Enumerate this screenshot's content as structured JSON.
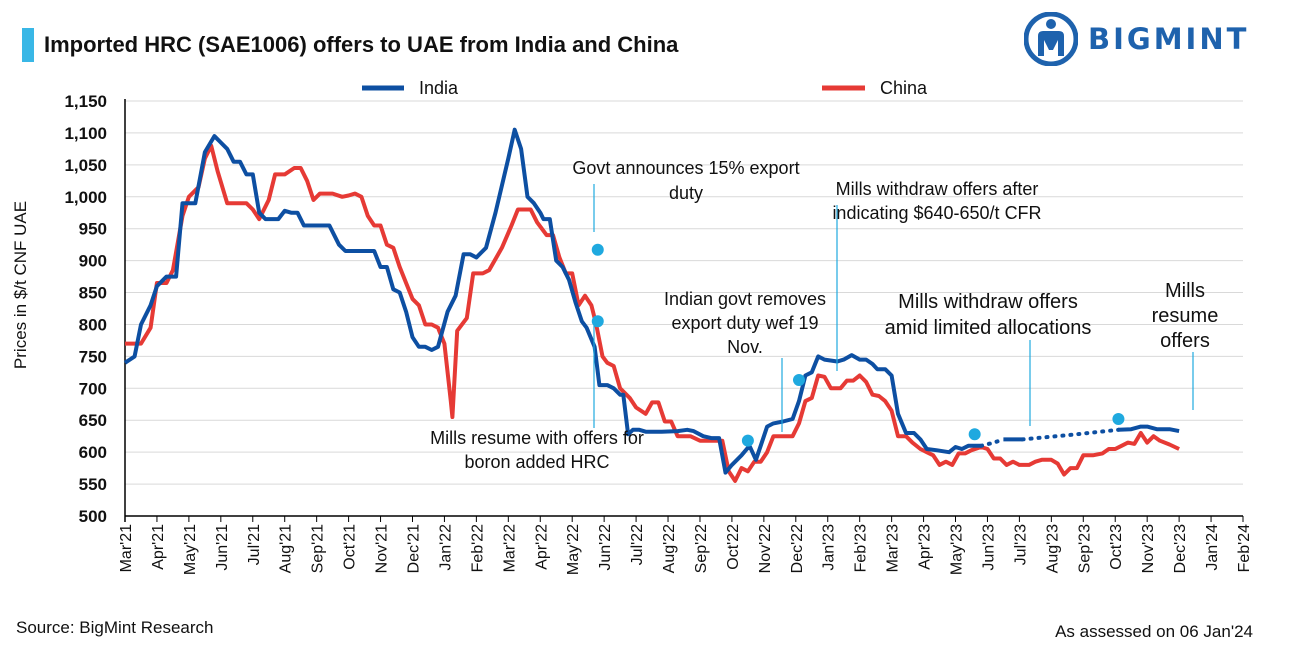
{
  "header": {
    "title": "Imported HRC (SAE1006) offers to UAE from India and China",
    "logo_text": "BIGMINT"
  },
  "footer": {
    "source": "Source: BigMint Research",
    "assessed": "As assessed on 06 Jan'24"
  },
  "colors": {
    "india": "#0d4fa2",
    "china": "#e63a35",
    "accent": "#39b7e6",
    "marker": "#1fa9df"
  },
  "chart_data": {
    "type": "line",
    "title": "Imported HRC (SAE1006) offers to UAE from India and China",
    "ylabel": "Prices in $/t CNF UAE",
    "xlabel": "",
    "ylim": [
      500,
      1150
    ],
    "yticks": [
      500,
      550,
      600,
      650,
      700,
      750,
      800,
      850,
      900,
      950,
      1000,
      1050,
      1100,
      1150
    ],
    "ytick_labels": [
      "500",
      "550",
      "600",
      "650",
      "700",
      "750",
      "800",
      "850",
      "900",
      "950",
      "1,000",
      "1,050",
      "1,100",
      "1,150"
    ],
    "x_tick_labels": [
      "Mar'21",
      "Apr'21",
      "May'21",
      "Jun'21",
      "Jul'21",
      "Aug'21",
      "Sep'21",
      "Oct'21",
      "Nov'21",
      "Dec'21",
      "Jan'22",
      "Feb'22",
      "Mar'22",
      "Apr'22",
      "May'22",
      "Jun'22",
      "Jul'22",
      "Aug'22",
      "Sep'22",
      "Oct'22",
      "Nov'22",
      "Dec'22",
      "Jan'23",
      "Feb'23",
      "Mar'23",
      "Apr'23",
      "May'23",
      "Jun'23",
      "Jul'23",
      "Aug'23",
      "Sep'23",
      "Oct'23",
      "Nov'23",
      "Dec'23",
      "Jan'24",
      "Feb'24"
    ],
    "legend_position": "top",
    "grid": "horizontal",
    "series": [
      {
        "name": "India",
        "color": "#0d4fa2",
        "points": [
          [
            0,
            740
          ],
          [
            0.3,
            750
          ],
          [
            0.5,
            800
          ],
          [
            0.8,
            830
          ],
          [
            1.0,
            860
          ],
          [
            1.3,
            875
          ],
          [
            1.6,
            875
          ],
          [
            1.8,
            990
          ],
          [
            2.2,
            990
          ],
          [
            2.5,
            1070
          ],
          [
            2.8,
            1095
          ],
          [
            3.0,
            1085
          ],
          [
            3.2,
            1075
          ],
          [
            3.4,
            1055
          ],
          [
            3.6,
            1055
          ],
          [
            3.8,
            1035
          ],
          [
            4.0,
            1035
          ],
          [
            4.2,
            975
          ],
          [
            4.4,
            965
          ],
          [
            4.8,
            965
          ],
          [
            5.0,
            978
          ],
          [
            5.2,
            975
          ],
          [
            5.4,
            975
          ],
          [
            5.6,
            955
          ],
          [
            6.0,
            955
          ],
          [
            6.4,
            955
          ],
          [
            6.7,
            925
          ],
          [
            6.9,
            915
          ],
          [
            7.4,
            915
          ],
          [
            7.8,
            915
          ],
          [
            8.0,
            890
          ],
          [
            8.2,
            890
          ],
          [
            8.4,
            855
          ],
          [
            8.6,
            850
          ],
          [
            8.8,
            820
          ],
          [
            9.0,
            780
          ],
          [
            9.2,
            765
          ],
          [
            9.4,
            765
          ],
          [
            9.6,
            760
          ],
          [
            9.8,
            765
          ],
          [
            10.1,
            820
          ],
          [
            10.35,
            845
          ],
          [
            10.6,
            910
          ],
          [
            10.8,
            910
          ],
          [
            11.0,
            905
          ],
          [
            11.3,
            920
          ],
          [
            11.6,
            975
          ],
          [
            12.0,
            1060
          ],
          [
            12.2,
            1105
          ],
          [
            12.4,
            1075
          ],
          [
            12.6,
            1000
          ],
          [
            12.8,
            990
          ],
          [
            13.0,
            975
          ],
          [
            13.1,
            965
          ],
          [
            13.3,
            965
          ],
          [
            13.5,
            900
          ],
          [
            13.7,
            890
          ],
          [
            13.9,
            870
          ],
          [
            14.1,
            835
          ],
          [
            14.3,
            805
          ],
          [
            14.45,
            795
          ],
          [
            14.7,
            765
          ],
          [
            14.85,
            705
          ],
          [
            15.1,
            705
          ],
          [
            15.3,
            700
          ],
          [
            15.5,
            690
          ],
          [
            15.6,
            690
          ],
          [
            15.75,
            628
          ],
          [
            15.9,
            635
          ],
          [
            16.1,
            635
          ],
          [
            16.3,
            632
          ],
          [
            16.8,
            632
          ],
          [
            17.3,
            633
          ],
          [
            17.6,
            635
          ],
          [
            17.8,
            633
          ],
          [
            18.1,
            625
          ],
          [
            18.35,
            622
          ],
          [
            18.6,
            622
          ],
          [
            18.8,
            568
          ],
          [
            19.0,
            580
          ],
          [
            19.3,
            595
          ],
          [
            19.55,
            610
          ],
          [
            19.75,
            588
          ],
          [
            19.9,
            610
          ],
          [
            20.1,
            640
          ],
          [
            20.3,
            645
          ],
          [
            20.6,
            648
          ],
          [
            20.9,
            652
          ],
          [
            21.1,
            680
          ],
          [
            21.3,
            720
          ],
          [
            21.5,
            725
          ],
          [
            21.7,
            750
          ],
          [
            21.9,
            745
          ],
          [
            22.3,
            742
          ],
          [
            22.5,
            745
          ],
          [
            22.75,
            752
          ],
          [
            23.0,
            745
          ],
          [
            23.2,
            745
          ],
          [
            23.4,
            738
          ],
          [
            23.55,
            730
          ],
          [
            23.8,
            730
          ],
          [
            24.0,
            720
          ],
          [
            24.2,
            660
          ],
          [
            24.45,
            630
          ],
          [
            24.7,
            630
          ],
          [
            24.9,
            620
          ],
          [
            25.1,
            605
          ],
          [
            25.4,
            603
          ],
          [
            25.8,
            600
          ],
          [
            26.0,
            608
          ],
          [
            26.2,
            605
          ],
          [
            26.4,
            610
          ],
          [
            26.8,
            610
          ]
        ],
        "dotted_points": [
          [
            26.8,
            610
          ],
          [
            27.2,
            615
          ],
          [
            27.5,
            620
          ]
        ],
        "solid_segment_2": [
          [
            27.5,
            620
          ],
          [
            28.1,
            620
          ]
        ],
        "dotted_points_2": [
          [
            28.1,
            620
          ],
          [
            29.6,
            627
          ],
          [
            31.1,
            635
          ]
        ],
        "solid_segment_3": [
          [
            31.1,
            635
          ],
          [
            31.5,
            636
          ],
          [
            31.8,
            640
          ],
          [
            32.0,
            640
          ],
          [
            32.3,
            636
          ],
          [
            32.7,
            636
          ],
          [
            33.0,
            633
          ]
        ]
      },
      {
        "name": "China",
        "color": "#e63a35",
        "points": [
          [
            0,
            770
          ],
          [
            0.5,
            770
          ],
          [
            0.8,
            795
          ],
          [
            1.0,
            865
          ],
          [
            1.3,
            865
          ],
          [
            1.5,
            885
          ],
          [
            1.8,
            970
          ],
          [
            2.0,
            1000
          ],
          [
            2.3,
            1015
          ],
          [
            2.5,
            1060
          ],
          [
            2.7,
            1080
          ],
          [
            2.9,
            1040
          ],
          [
            3.2,
            990
          ],
          [
            3.5,
            990
          ],
          [
            3.8,
            990
          ],
          [
            4.0,
            980
          ],
          [
            4.2,
            965
          ],
          [
            4.5,
            995
          ],
          [
            4.7,
            1035
          ],
          [
            5.0,
            1035
          ],
          [
            5.3,
            1045
          ],
          [
            5.5,
            1045
          ],
          [
            5.7,
            1025
          ],
          [
            5.9,
            995
          ],
          [
            6.1,
            1005
          ],
          [
            6.5,
            1005
          ],
          [
            6.8,
            1000
          ],
          [
            7.0,
            1002
          ],
          [
            7.2,
            1005
          ],
          [
            7.4,
            1000
          ],
          [
            7.6,
            970
          ],
          [
            7.8,
            955
          ],
          [
            8.0,
            955
          ],
          [
            8.2,
            925
          ],
          [
            8.4,
            920
          ],
          [
            8.6,
            890
          ],
          [
            8.8,
            865
          ],
          [
            9.0,
            840
          ],
          [
            9.2,
            830
          ],
          [
            9.4,
            800
          ],
          [
            9.6,
            800
          ],
          [
            9.8,
            795
          ],
          [
            10.0,
            770
          ],
          [
            10.2,
            680
          ],
          [
            10.25,
            655
          ],
          [
            10.4,
            790
          ],
          [
            10.7,
            810
          ],
          [
            10.9,
            880
          ],
          [
            11.2,
            880
          ],
          [
            11.4,
            885
          ],
          [
            11.8,
            920
          ],
          [
            12.1,
            955
          ],
          [
            12.3,
            980
          ],
          [
            12.7,
            980
          ],
          [
            12.9,
            960
          ],
          [
            13.2,
            940
          ],
          [
            13.4,
            940
          ],
          [
            13.6,
            905
          ],
          [
            13.8,
            880
          ],
          [
            14.0,
            880
          ],
          [
            14.2,
            830
          ],
          [
            14.4,
            845
          ],
          [
            14.6,
            830
          ],
          [
            14.75,
            800
          ],
          [
            14.95,
            750
          ],
          [
            15.1,
            740
          ],
          [
            15.3,
            735
          ],
          [
            15.5,
            700
          ],
          [
            15.8,
            685
          ],
          [
            16.0,
            670
          ],
          [
            16.3,
            660
          ],
          [
            16.5,
            678
          ],
          [
            16.7,
            678
          ],
          [
            16.9,
            648
          ],
          [
            17.1,
            648
          ],
          [
            17.3,
            625
          ],
          [
            17.7,
            625
          ],
          [
            18.0,
            618
          ],
          [
            18.2,
            618
          ],
          [
            18.7,
            618
          ],
          [
            18.9,
            570
          ],
          [
            19.1,
            555
          ],
          [
            19.3,
            575
          ],
          [
            19.5,
            570
          ],
          [
            19.7,
            585
          ],
          [
            19.9,
            585
          ],
          [
            20.1,
            600
          ],
          [
            20.3,
            625
          ],
          [
            20.6,
            625
          ],
          [
            20.9,
            625
          ],
          [
            21.1,
            645
          ],
          [
            21.3,
            680
          ],
          [
            21.5,
            685
          ],
          [
            21.7,
            720
          ],
          [
            21.9,
            718
          ],
          [
            22.1,
            700
          ],
          [
            22.4,
            700
          ],
          [
            22.6,
            712
          ],
          [
            22.8,
            712
          ],
          [
            23.0,
            720
          ],
          [
            23.2,
            710
          ],
          [
            23.4,
            690
          ],
          [
            23.6,
            688
          ],
          [
            23.8,
            680
          ],
          [
            24.0,
            665
          ],
          [
            24.2,
            625
          ],
          [
            24.45,
            625
          ],
          [
            24.65,
            615
          ],
          [
            24.9,
            605
          ],
          [
            25.1,
            600
          ],
          [
            25.3,
            595
          ],
          [
            25.5,
            580
          ],
          [
            25.7,
            585
          ],
          [
            25.9,
            580
          ],
          [
            26.1,
            598
          ],
          [
            26.3,
            598
          ],
          [
            26.5,
            603
          ],
          [
            26.8,
            608
          ],
          [
            27.0,
            605
          ],
          [
            27.2,
            590
          ],
          [
            27.4,
            590
          ],
          [
            27.6,
            580
          ],
          [
            27.8,
            585
          ],
          [
            28.0,
            580
          ],
          [
            28.3,
            580
          ],
          [
            28.5,
            585
          ],
          [
            28.7,
            588
          ],
          [
            29.0,
            588
          ],
          [
            29.2,
            582
          ],
          [
            29.4,
            565
          ],
          [
            29.6,
            575
          ],
          [
            29.8,
            575
          ],
          [
            30.0,
            595
          ],
          [
            30.3,
            595
          ],
          [
            30.6,
            598
          ],
          [
            30.8,
            605
          ],
          [
            31.0,
            605
          ],
          [
            31.2,
            610
          ],
          [
            31.4,
            615
          ],
          [
            31.6,
            613
          ],
          [
            31.8,
            630
          ],
          [
            32.0,
            615
          ],
          [
            32.2,
            625
          ],
          [
            32.4,
            618
          ],
          [
            32.7,
            612
          ],
          [
            33.0,
            605
          ]
        ]
      }
    ],
    "annotations": [
      {
        "id": "ann1",
        "text_lines": [
          "Govt announces 15% export",
          "duty"
        ],
        "point": [
          14.8,
          917
        ]
      },
      {
        "id": "ann2",
        "text_lines": [
          "Mills resume with offers for",
          "boron added HRC"
        ],
        "point": [
          14.8,
          805
        ]
      },
      {
        "id": "ann3",
        "text_lines": [
          "Indian govt removes",
          "export duty wef 19",
          "Nov."
        ],
        "point": [
          19.5,
          618
        ]
      },
      {
        "id": "ann4",
        "text_lines": [
          "Mills withdraw offers after",
          "indicating $640-650/t CFR"
        ],
        "point": [
          21.1,
          713
        ]
      },
      {
        "id": "ann5",
        "text_lines": [
          "Mills withdraw offers",
          "amid limited allocations"
        ],
        "point": [
          26.6,
          628
        ]
      },
      {
        "id": "ann6",
        "text_lines": [
          "Mills",
          "resume",
          "offers"
        ],
        "point": [
          31.1,
          652
        ]
      }
    ]
  }
}
